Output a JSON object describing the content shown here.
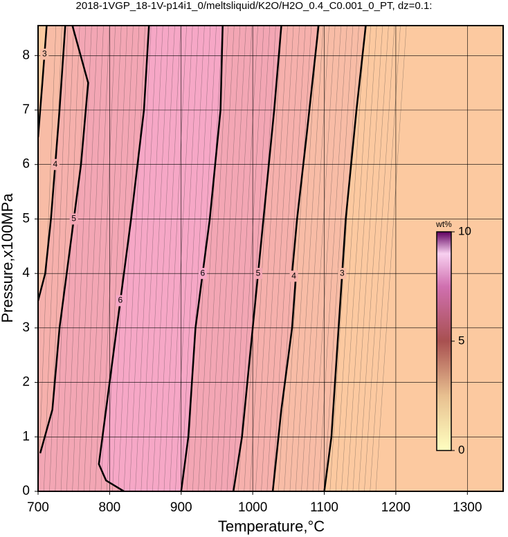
{
  "chart_data": {
    "type": "contour",
    "title": "2018-1VGP_18-1V-p14i1_0/meltsliquid/K2O/H2O_0.4_C0.001_0_PT, dz=0.1:",
    "xlabel": "Temperature,°C",
    "ylabel": "Pressure,x100MPa",
    "xlim": [
      700,
      1350
    ],
    "xticks": [
      700,
      800,
      900,
      1000,
      1100,
      1200,
      1300
    ],
    "ylim": [
      0,
      8.55
    ],
    "yticks": [
      0,
      1,
      2,
      3,
      4,
      5,
      6,
      7,
      8
    ],
    "grid": true,
    "background": "#fcc9a0",
    "contours": [
      {
        "level": 3,
        "fill": "#f8bca6",
        "segments": [
          {
            "x": [
              700,
              706,
              712
            ],
            "y": [
              6.5,
              7.5,
              8.55
            ]
          },
          {
            "x": [
              1100,
              1110,
              1120,
              1130,
              1145,
              1158
            ],
            "y": [
              0,
              1,
              3,
              5,
              7,
              8.55
            ]
          }
        ]
      },
      {
        "level": 4,
        "fill": "#f6b0ac",
        "segments": [
          {
            "x": [
              700,
              710,
              718,
              730,
              738
            ],
            "y": [
              3.5,
              4,
              5,
              7,
              8.55
            ]
          },
          {
            "x": [
              1028,
              1040,
              1055,
              1060,
              1055,
              1062,
              1075,
              1092
            ],
            "y": [
              0,
              1.5,
              3,
              3.9,
              4,
              5,
              6.5,
              8.55
            ]
          }
        ]
      },
      {
        "level": 5,
        "fill": "#f3a6b4",
        "segments": [
          {
            "x": [
              703,
              720,
              730,
              740,
              760,
              770,
              748
            ],
            "y": [
              0.7,
              1.5,
              3,
              4,
              6,
              7.5,
              8.55
            ]
          },
          {
            "x": [
              973,
              985,
              1000,
              1015,
              1030,
              1040
            ],
            "y": [
              0,
              1,
              3,
              5,
              7,
              8.55
            ]
          }
        ]
      },
      {
        "level": 6,
        "fill": "#f6a7c6",
        "segments": [
          {
            "x": [
              820,
              795,
              785,
              800,
              830,
              848,
              855
            ],
            "y": [
              0,
              0.2,
              0.5,
              2,
              5,
              7,
              8.55
            ]
          },
          {
            "x": [
              900,
              910,
              920,
              940,
              955,
              958
            ],
            "y": [
              0,
              1,
              3,
              5,
              7,
              8.55
            ]
          }
        ]
      }
    ],
    "colorbar": {
      "label": "wt%",
      "lim": [
        0,
        10
      ],
      "ticks": [
        0,
        5,
        10
      ]
    }
  }
}
